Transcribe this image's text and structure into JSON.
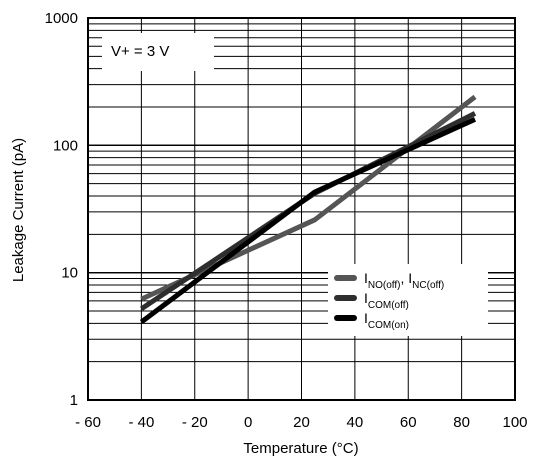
{
  "chart_data": {
    "type": "line",
    "xlabel": "Temperature (°C)",
    "ylabel": "Leakage Current  (pA)",
    "xlim": [
      -60,
      100
    ],
    "ylim": [
      1,
      1000
    ],
    "y_scale": "log",
    "grid": true,
    "x_ticks": [
      -60,
      -40,
      -20,
      0,
      20,
      40,
      60,
      80,
      100
    ],
    "x_tick_labels": [
      "- 60",
      "- 40",
      "- 20",
      "0",
      "20",
      "40",
      "60",
      "80",
      "100"
    ],
    "y_ticks": [
      1,
      10,
      100,
      1000
    ],
    "y_tick_labels": [
      "1",
      "10",
      "100",
      "1000"
    ],
    "annotation": "V+ = 3 V",
    "legend_position": "bottom-right",
    "series": [
      {
        "name": "INO(off), INC(off)",
        "main": "I",
        "sub1": "NO(off)",
        "sep": ", I",
        "sub2": "NC(off)",
        "color": "#555555",
        "x": [
          -40,
          25,
          85
        ],
        "y": [
          6.2,
          26,
          240
        ]
      },
      {
        "name": "ICOM(off)",
        "main": "I",
        "sub1": "COM(off)",
        "sep": "",
        "sub2": "",
        "color": "#2e2e2e",
        "x": [
          -40,
          25,
          85
        ],
        "y": [
          5.2,
          42,
          178
        ]
      },
      {
        "name": "ICOM(on)",
        "main": "I",
        "sub1": "COM(on)",
        "sep": "",
        "sub2": "",
        "color": "#000000",
        "x": [
          -40,
          25,
          85
        ],
        "y": [
          4.1,
          43,
          160
        ]
      }
    ]
  }
}
